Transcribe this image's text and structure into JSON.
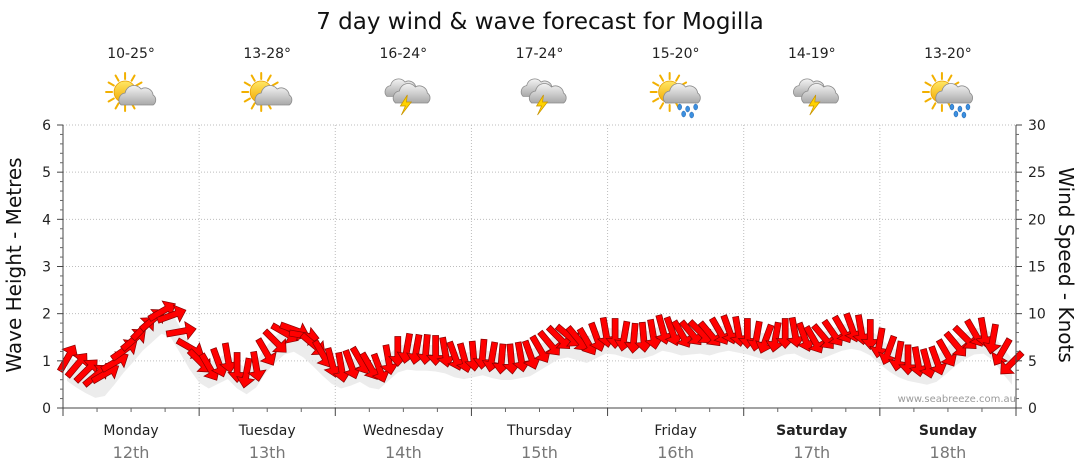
{
  "chart_data": {
    "type": "line",
    "title": "7 day wind & wave forecast for Mogilla",
    "ylabel_left": "Wave Height - Metres",
    "ylabel_right": "Wind Speed - Knots",
    "yleft_ticks": [
      "0",
      "1",
      "2",
      "3",
      "4",
      "5",
      "6"
    ],
    "yright_ticks": [
      "0",
      "5",
      "10",
      "15",
      "20",
      "25",
      "30"
    ],
    "ylim_left": [
      0,
      6
    ],
    "ylim_right": [
      0,
      30
    ],
    "grid": true,
    "days": [
      {
        "name": "Monday",
        "date": "12th",
        "temp": "10-25°",
        "icon": "partly-cloudy-sun-icon",
        "bold": false
      },
      {
        "name": "Tuesday",
        "date": "13th",
        "temp": "13-28°",
        "icon": "partly-cloudy-sun-icon",
        "bold": false
      },
      {
        "name": "Wednesday",
        "date": "14th",
        "temp": "16-24°",
        "icon": "thunderstorm-icon",
        "bold": false
      },
      {
        "name": "Thursday",
        "date": "15th",
        "temp": "17-24°",
        "icon": "thunderstorm-icon",
        "bold": false
      },
      {
        "name": "Friday",
        "date": "16th",
        "temp": "15-20°",
        "icon": "sun-rain-icon",
        "bold": false
      },
      {
        "name": "Saturday",
        "date": "17th",
        "temp": "14-19°",
        "icon": "thunderstorm-icon",
        "bold": true
      },
      {
        "name": "Sunday",
        "date": "18th",
        "temp": "13-20°",
        "icon": "sun-rain-icon",
        "bold": true
      }
    ],
    "series": [
      {
        "name": "Wind Speed",
        "color": "#ff0000",
        "values": [
          5.2,
          4.5,
          3.9,
          3.4,
          3.6,
          4.8,
          6.1,
          7.2,
          8.4,
          9.3,
          10.2,
          9.8,
          8.1,
          6.4,
          5.0,
          4.4,
          4.9,
          5.4,
          4.4,
          3.8,
          4.5,
          6.0,
          7.1,
          8.0,
          8.3,
          7.7,
          6.8,
          5.8,
          4.9,
          4.4,
          4.7,
          5.1,
          4.5,
          4.3,
          5.2,
          6.1,
          6.4,
          6.3,
          6.3,
          6.2,
          6.0,
          5.6,
          5.4,
          5.6,
          5.8,
          5.5,
          5.3,
          5.3,
          5.5,
          5.7,
          6.3,
          6.9,
          7.5,
          7.7,
          7.4,
          7.1,
          7.6,
          8.1,
          8.0,
          7.7,
          7.5,
          7.6,
          7.9,
          8.4,
          8.2,
          7.9,
          8.0,
          8.1,
          7.9,
          8.2,
          8.4,
          8.2,
          8.0,
          7.7,
          7.4,
          7.6,
          8.0,
          8.1,
          7.6,
          7.3,
          7.6,
          8.0,
          8.4,
          8.6,
          8.4,
          7.9,
          7.0,
          6.2,
          5.6,
          5.2,
          5.0,
          4.8,
          5.1,
          5.9,
          6.8,
          7.5,
          8.0,
          8.1,
          7.4,
          6.0,
          4.8
        ]
      }
    ],
    "watermark": "www.seabreeze.com.au"
  }
}
